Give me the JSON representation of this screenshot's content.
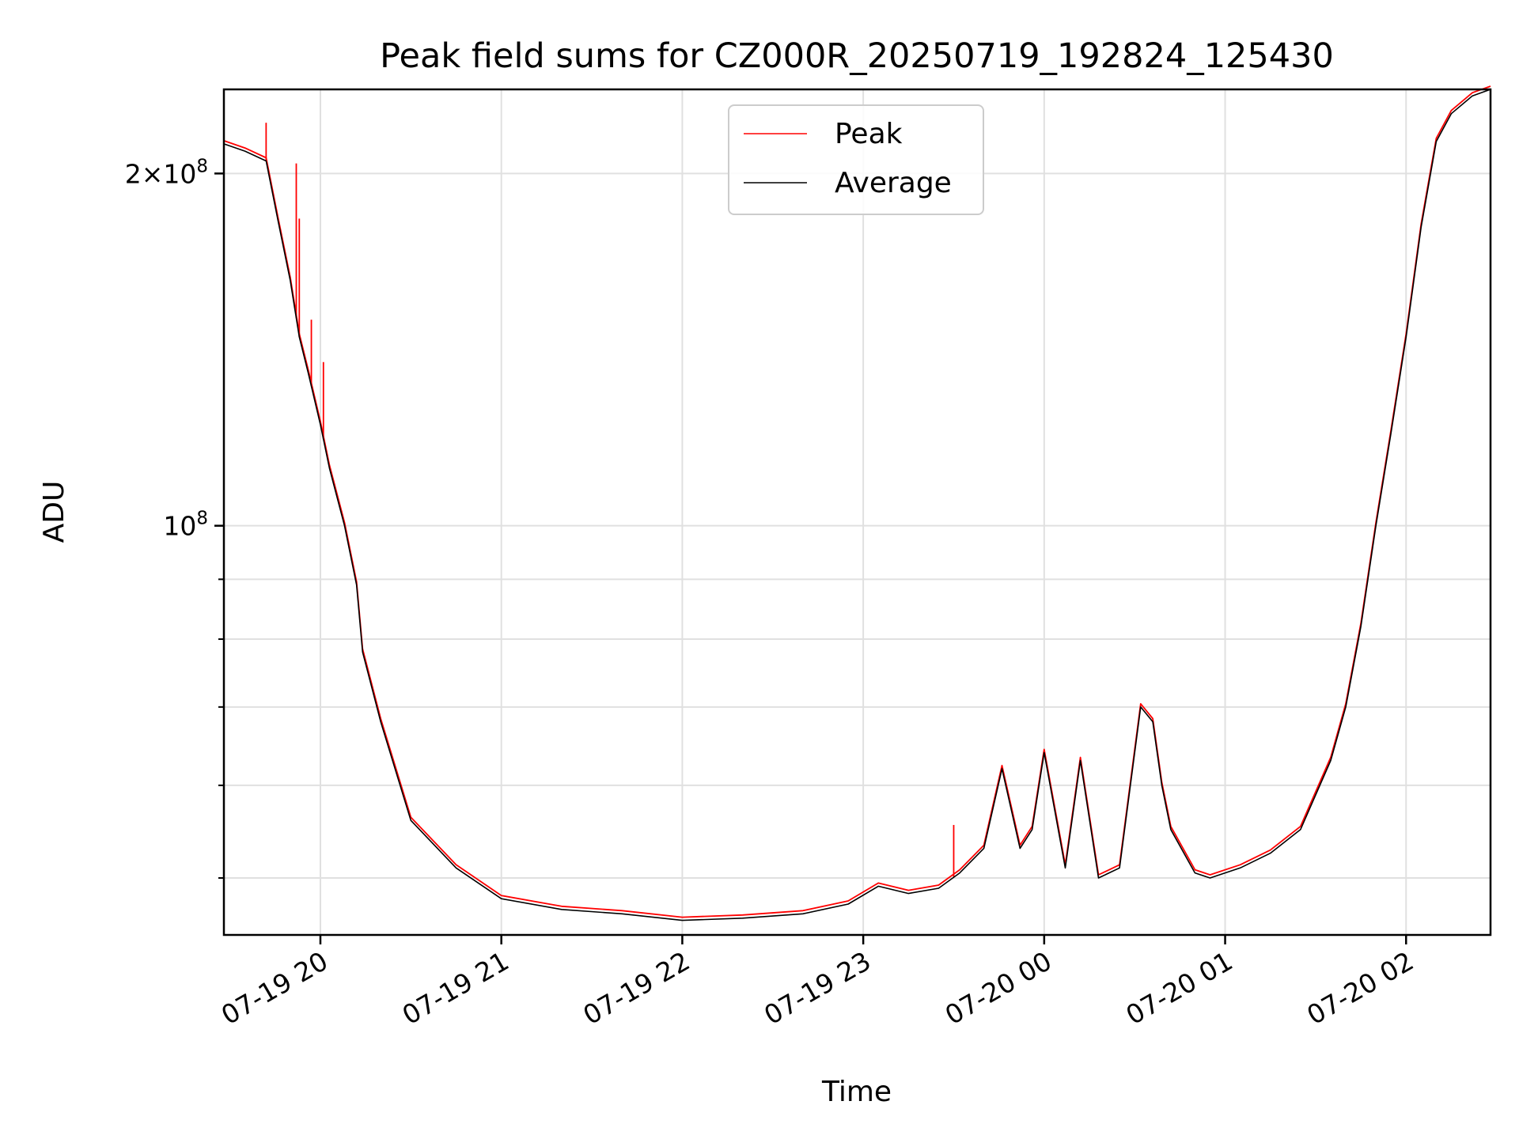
{
  "chart_data": {
    "type": "line",
    "title": "Peak field sums for CZ000R_20250719_192824_125430",
    "xlabel": "Time",
    "ylabel": "ADU",
    "yscale": "log",
    "grid": true,
    "legend_position": "top-center",
    "xlim": [
      "2025-07-19T19:28",
      "2025-07-20T02:28"
    ],
    "ylim": [
      44700000,
      236000000
    ],
    "x_ticks": [
      {
        "value": "2025-07-19T20:00",
        "label": "07-19 20"
      },
      {
        "value": "2025-07-19T21:00",
        "label": "07-19 21"
      },
      {
        "value": "2025-07-19T22:00",
        "label": "07-19 22"
      },
      {
        "value": "2025-07-19T23:00",
        "label": "07-19 23"
      },
      {
        "value": "2025-07-20T00:00",
        "label": "07-20 00"
      },
      {
        "value": "2025-07-20T01:00",
        "label": "07-20 01"
      },
      {
        "value": "2025-07-20T02:00",
        "label": "07-20 02"
      }
    ],
    "y_ticks": [
      {
        "value": 200000000,
        "mantissa": "2",
        "times": "×",
        "base": "10",
        "exp": "8"
      },
      {
        "value": 100000000,
        "mantissa": "",
        "times": "",
        "base": "10",
        "exp": "8"
      }
    ],
    "y_minor_ticks": [
      50000000,
      60000000,
      70000000,
      80000000,
      90000000
    ],
    "series": [
      {
        "name": "Peak",
        "color": "#ff0000",
        "spikes": [
          [
            "2025-07-19T19:42",
            221000000
          ],
          [
            "2025-07-19T19:52",
            204000000
          ],
          [
            "2025-07-19T19:53",
            183000000
          ],
          [
            "2025-07-19T19:57",
            150000000
          ],
          [
            "2025-07-19T20:01",
            138000000
          ],
          [
            "2025-07-19T23:30",
            55500000
          ]
        ]
      },
      {
        "name": "Average",
        "color": "#000000",
        "x": [
          "2025-07-19T19:28",
          "2025-07-19T19:35",
          "2025-07-19T19:42",
          "2025-07-19T19:46",
          "2025-07-19T19:50",
          "2025-07-19T19:53",
          "2025-07-19T19:56",
          "2025-07-19T20:00",
          "2025-07-19T20:03",
          "2025-07-19T20:08",
          "2025-07-19T20:12",
          "2025-07-19T20:14",
          "2025-07-19T20:20",
          "2025-07-19T20:30",
          "2025-07-19T20:45",
          "2025-07-19T21:00",
          "2025-07-19T21:20",
          "2025-07-19T21:40",
          "2025-07-19T22:00",
          "2025-07-19T22:20",
          "2025-07-19T22:40",
          "2025-07-19T22:55",
          "2025-07-19T23:05",
          "2025-07-19T23:15",
          "2025-07-19T23:25",
          "2025-07-19T23:32",
          "2025-07-19T23:40",
          "2025-07-19T23:46",
          "2025-07-19T23:52",
          "2025-07-19T23:56",
          "2025-07-20T00:00",
          "2025-07-20T00:07",
          "2025-07-20T00:12",
          "2025-07-20T00:18",
          "2025-07-20T00:25",
          "2025-07-20T00:32",
          "2025-07-20T00:36",
          "2025-07-20T00:39",
          "2025-07-20T00:42",
          "2025-07-20T00:50",
          "2025-07-20T00:55",
          "2025-07-20T01:05",
          "2025-07-20T01:15",
          "2025-07-20T01:25",
          "2025-07-20T01:35",
          "2025-07-20T01:40",
          "2025-07-20T01:45",
          "2025-07-20T01:50",
          "2025-07-20T01:55",
          "2025-07-20T02:00",
          "2025-07-20T02:05",
          "2025-07-20T02:10",
          "2025-07-20T02:15",
          "2025-07-20T02:22",
          "2025-07-20T02:28"
        ],
        "values": [
          212000000,
          209000000,
          205000000,
          182000000,
          162000000,
          145000000,
          135000000,
          122000000,
          112000000,
          100000000,
          89000000,
          78000000,
          68000000,
          56000000,
          51000000,
          48000000,
          47000000,
          46600000,
          46000000,
          46200000,
          46600000,
          47500000,
          49200000,
          48500000,
          49000000,
          50500000,
          53000000,
          62000000,
          53000000,
          55000000,
          64000000,
          51000000,
          63000000,
          50000000,
          51000000,
          70000000,
          68000000,
          60000000,
          55000000,
          50500000,
          50000000,
          51000000,
          52500000,
          55000000,
          63000000,
          70000000,
          82000000,
          100000000,
          120000000,
          145000000,
          180000000,
          213000000,
          225000000,
          233000000,
          236000000
        ]
      }
    ]
  }
}
